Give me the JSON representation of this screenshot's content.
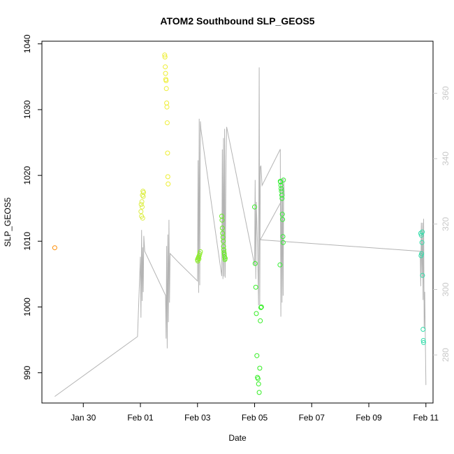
{
  "chart_data": {
    "type": "scatter",
    "title": "ATOM2 Southbound SLP_GEOS5",
    "xlabel": "Date",
    "ylabel": "SLP_GEOS5",
    "x_axis": {
      "range": [
        -2.45,
        11.25
      ],
      "ticks": [
        {
          "value": -1,
          "label": "Jan 30"
        },
        {
          "value": 1,
          "label": "Feb 01"
        },
        {
          "value": 3,
          "label": "Feb 03"
        },
        {
          "value": 5,
          "label": "Feb 05"
        },
        {
          "value": 7,
          "label": "Feb 07"
        },
        {
          "value": 9,
          "label": "Feb 09"
        },
        {
          "value": 11,
          "label": "Feb 11"
        }
      ]
    },
    "y_left": {
      "range": [
        985.4,
        1040.4
      ],
      "ticks": [
        {
          "value": 990,
          "label": "990"
        },
        {
          "value": 1000,
          "label": "1000"
        },
        {
          "value": 1010,
          "label": "1010"
        },
        {
          "value": 1020,
          "label": "1020"
        },
        {
          "value": 1030,
          "label": "1030"
        },
        {
          "value": 1040,
          "label": "1040"
        }
      ]
    },
    "y_right": {
      "range": [
        265.3,
        375.9
      ],
      "ticks": [
        {
          "value": 280,
          "label": "280"
        },
        {
          "value": 300,
          "label": "300"
        },
        {
          "value": 320,
          "label": "320"
        },
        {
          "value": 340,
          "label": "340"
        },
        {
          "value": 360,
          "label": "360"
        }
      ]
    },
    "grid": false,
    "point_series": [
      {
        "color": "#ff8c00",
        "points": [
          [
            -2.0,
            1009.0
          ]
        ]
      },
      {
        "color": "#ddee44",
        "points": [
          [
            1.02,
            1014.5
          ],
          [
            1.05,
            1016.0
          ],
          [
            1.07,
            1017.0
          ],
          [
            1.09,
            1017.6
          ],
          [
            1.1,
            1016.8
          ],
          [
            1.04,
            1013.8
          ],
          [
            1.06,
            1015.2
          ],
          [
            1.08,
            1013.5
          ],
          [
            1.11,
            1017.4
          ],
          [
            1.03,
            1015.6
          ]
        ]
      },
      {
        "color": "#eeee33",
        "points": [
          [
            1.85,
            1038.3
          ],
          [
            1.86,
            1038.0
          ],
          [
            1.87,
            1036.5
          ],
          [
            1.88,
            1035.5
          ],
          [
            1.89,
            1034.6
          ],
          [
            1.9,
            1034.4
          ],
          [
            1.91,
            1033.2
          ],
          [
            1.92,
            1031.0
          ],
          [
            1.93,
            1030.4
          ],
          [
            1.94,
            1028.0
          ],
          [
            1.95,
            1023.4
          ],
          [
            1.96,
            1019.8
          ],
          [
            1.97,
            1018.7
          ]
        ]
      },
      {
        "color": "#88ee22",
        "points": [
          [
            3.0,
            1007.2
          ],
          [
            3.02,
            1007.4
          ],
          [
            3.04,
            1007.6
          ],
          [
            3.06,
            1007.8
          ],
          [
            3.08,
            1008.1
          ],
          [
            3.1,
            1008.4
          ],
          [
            3.01,
            1007.0
          ],
          [
            3.05,
            1007.3
          ]
        ]
      },
      {
        "color": "#66ee22",
        "points": [
          [
            3.85,
            1013.8
          ],
          [
            3.86,
            1013.2
          ],
          [
            3.87,
            1012.0
          ],
          [
            3.88,
            1011.2
          ],
          [
            3.89,
            1010.6
          ],
          [
            3.9,
            1010.0
          ],
          [
            3.91,
            1009.2
          ],
          [
            3.92,
            1008.7
          ],
          [
            3.93,
            1008.3
          ],
          [
            3.94,
            1008.0
          ],
          [
            3.95,
            1007.6
          ],
          [
            3.96,
            1007.2
          ],
          [
            3.97,
            1007.4
          ]
        ]
      },
      {
        "color": "#33ee22",
        "points": [
          [
            5.0,
            1015.2
          ],
          [
            5.02,
            1006.6
          ],
          [
            5.04,
            1003.0
          ],
          [
            5.06,
            999.0
          ],
          [
            5.08,
            992.6
          ],
          [
            5.1,
            989.3
          ],
          [
            5.12,
            989.1
          ],
          [
            5.14,
            988.3
          ],
          [
            5.16,
            987.0
          ],
          [
            5.18,
            990.7
          ],
          [
            5.2,
            997.9
          ],
          [
            5.22,
            999.9
          ],
          [
            5.24,
            1000.0
          ]
        ]
      },
      {
        "color": "#33ee33",
        "points": [
          [
            5.9,
            1019.1
          ],
          [
            5.91,
            1019.0
          ],
          [
            5.92,
            1018.5
          ],
          [
            5.93,
            1018.0
          ],
          [
            5.94,
            1017.6
          ],
          [
            5.95,
            1017.0
          ],
          [
            5.96,
            1016.5
          ],
          [
            5.97,
            1014.1
          ],
          [
            5.98,
            1013.3
          ],
          [
            5.99,
            1010.7
          ],
          [
            6.0,
            1009.8
          ],
          [
            5.89,
            1006.4
          ],
          [
            6.01,
            1019.3
          ]
        ]
      },
      {
        "color": "#33ddaa",
        "points": [
          [
            10.82,
            1011.2
          ],
          [
            10.84,
            1010.9
          ],
          [
            10.86,
            1009.8
          ],
          [
            10.85,
            1008.1
          ],
          [
            10.83,
            1007.8
          ],
          [
            10.88,
            1004.8
          ],
          [
            10.9,
            996.6
          ],
          [
            10.91,
            994.9
          ],
          [
            10.92,
            994.6
          ],
          [
            10.87,
            1011.4
          ]
        ]
      }
    ],
    "trace_series": {
      "name": "",
      "color": "#b4b4b4",
      "axis": "right",
      "points": [
        [
          -2.0,
          267.3
        ],
        [
          0.9,
          285.6
        ],
        [
          1.0,
          310.0
        ],
        [
          1.02,
          291.4
        ],
        [
          1.04,
          318.2
        ],
        [
          1.06,
          296.5
        ],
        [
          1.08,
          312.9
        ],
        [
          1.1,
          299.2
        ],
        [
          1.12,
          316.4
        ],
        [
          1.15,
          311.7
        ],
        [
          1.88,
          298.2
        ],
        [
          1.9,
          285.0
        ],
        [
          1.92,
          313.3
        ],
        [
          1.94,
          282.0
        ],
        [
          1.96,
          316.8
        ],
        [
          1.98,
          290.0
        ],
        [
          2.0,
          321.3
        ],
        [
          2.02,
          296.0
        ],
        [
          2.04,
          311.0
        ],
        [
          2.3,
          308.6
        ],
        [
          3.0,
          302.6
        ],
        [
          3.02,
          339.5
        ],
        [
          3.04,
          299.0
        ],
        [
          3.06,
          352.2
        ],
        [
          3.08,
          301.3
        ],
        [
          3.1,
          351.4
        ],
        [
          3.12,
          348.9
        ],
        [
          3.85,
          304.1
        ],
        [
          3.87,
          342.8
        ],
        [
          3.89,
          303.2
        ],
        [
          3.91,
          346.3
        ],
        [
          3.93,
          304.0
        ],
        [
          3.95,
          349.1
        ],
        [
          3.97,
          303.6
        ],
        [
          4.0,
          339.3
        ],
        [
          4.02,
          349.7
        ],
        [
          5.0,
          307.5
        ],
        [
          5.02,
          333.5
        ],
        [
          5.04,
          303.2
        ],
        [
          5.06,
          326.8
        ],
        [
          5.1,
          314.5
        ],
        [
          5.14,
          295.1
        ],
        [
          5.16,
          367.9
        ],
        [
          5.18,
          294.9
        ],
        [
          5.2,
          337.4
        ],
        [
          5.22,
          337.9
        ],
        [
          5.26,
          331.8
        ],
        [
          5.9,
          342.9
        ],
        [
          5.92,
          291.7
        ],
        [
          5.94,
          333.3
        ],
        [
          5.96,
          296.0
        ],
        [
          5.98,
          333.9
        ],
        [
          6.0,
          298.1
        ],
        [
          6.02,
          333.9
        ],
        [
          6.04,
          328.6
        ],
        [
          5.2,
          315.2
        ],
        [
          10.8,
          311.7
        ],
        [
          10.82,
          301.0
        ],
        [
          10.84,
          320.4
        ],
        [
          10.86,
          303.8
        ],
        [
          10.88,
          320.4
        ],
        [
          10.9,
          296.8
        ],
        [
          10.92,
          321.6
        ],
        [
          10.94,
          288.0
        ],
        [
          10.96,
          299.3
        ],
        [
          11.0,
          270.8
        ]
      ]
    }
  }
}
